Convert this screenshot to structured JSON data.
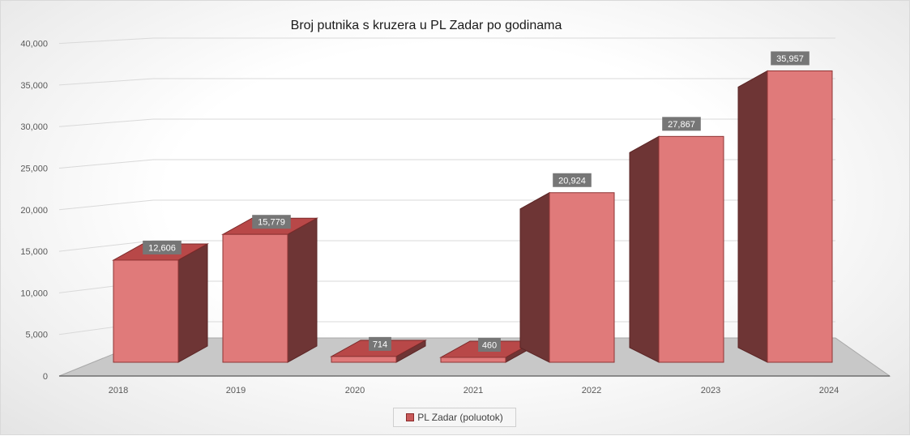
{
  "chart_data": {
    "type": "bar",
    "title": "Broj putnika s kruzera u PL Zadar po godinama",
    "categories": [
      "2018",
      "2019",
      "2020",
      "2021",
      "2022",
      "2023",
      "2024"
    ],
    "series": [
      {
        "name": "PL Zadar (poluotok)",
        "values": [
          12606,
          15779,
          714,
          460,
          20924,
          27867,
          35957
        ]
      }
    ],
    "data_labels": [
      "12,606",
      "15,779",
      "714",
      "460",
      "20,924",
      "27,867",
      "35,957"
    ],
    "y_ticks": [
      "0",
      "5,000",
      "10,000",
      "15,000",
      "20,000",
      "25,000",
      "30,000",
      "35,000",
      "40,000"
    ],
    "ylim": [
      0,
      40000
    ],
    "xlabel": "",
    "ylabel": "",
    "grid": true,
    "style": "3d-column",
    "legend_position": "bottom",
    "colors": {
      "bar_front": "#e07a7a",
      "bar_top": "#b84848",
      "bar_side": "#6e3535",
      "floor": "#c8c8c8",
      "label_bg": "#767676"
    }
  }
}
